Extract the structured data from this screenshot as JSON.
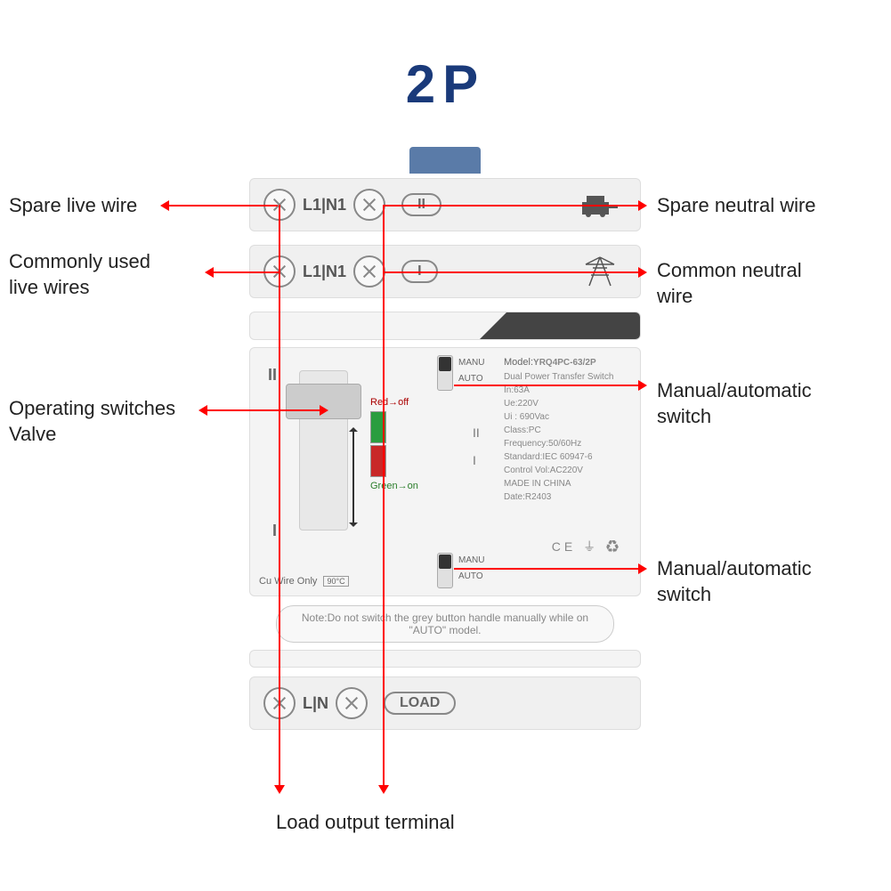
{
  "title": "2P",
  "colors": {
    "title_color": "#1a3a7a",
    "arrow_color": "#ff0000",
    "text_color": "#222222",
    "device_bg": "#f0f0f0",
    "green": "#2a9d3f",
    "red": "#c82828"
  },
  "terminals": {
    "row1": {
      "label": "L1|N1",
      "badge": "II"
    },
    "row2": {
      "label": "L1|N1",
      "badge": "I"
    },
    "load": {
      "label": "L|N",
      "badge": "LOAD"
    }
  },
  "switch": {
    "pos_top": "II",
    "pos_bottom": "I",
    "red_label": "Red→off",
    "green_label": "Green→on",
    "cu_wire": "Cu Wire Only",
    "temp": "90°C"
  },
  "mini_switch": {
    "manu": "MANU",
    "auto": "AUTO"
  },
  "specs": {
    "model_label": "Model:",
    "model": "YRQ4PC-63/2P",
    "subtitle": "Dual Power Transfer Switch",
    "lines": [
      "In:63A",
      "Ue:220V",
      "Ui : 690Vac",
      "Class:PC",
      "Frequency:50/60Hz",
      "Standard:IEC 60947-6",
      "Control Vol:AC220V",
      "MADE IN CHINA",
      "Date:R2403"
    ],
    "pos_II": "II",
    "pos_I": "I",
    "cert": "CE ⏚ ♻"
  },
  "note": "Note:Do not switch the grey button handle manually while on \"AUTO\" model.",
  "callouts": {
    "spare_live": "Spare live wire",
    "spare_neutral": "Spare neutral wire",
    "common_live": "Commonly used\nlive wires",
    "common_neutral": "Common neutral\nwire",
    "operating": "Operating switches\nValve",
    "manual_auto_1": "Manual/automatic\nswitch",
    "manual_auto_2": "Manual/automatic\nswitch",
    "load_output": "Load output terminal"
  }
}
